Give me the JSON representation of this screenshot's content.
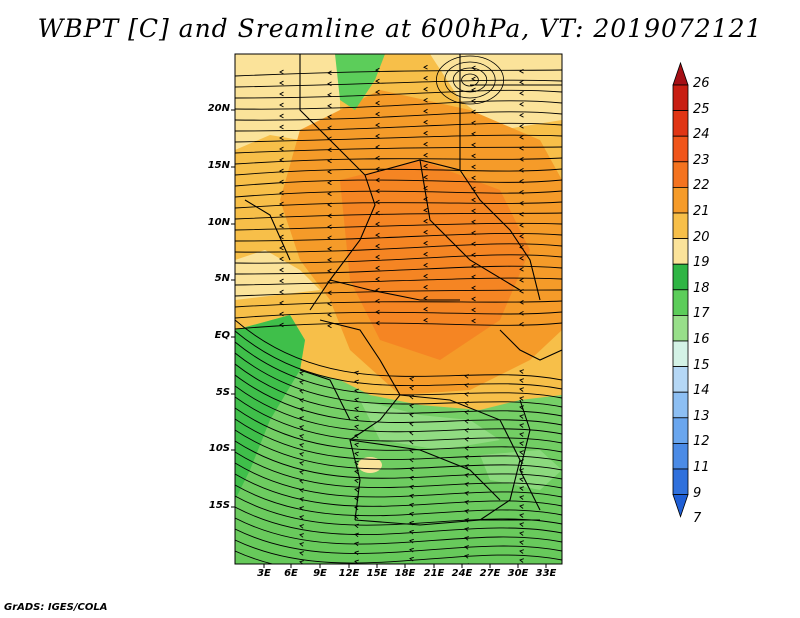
{
  "title": "WBPT [C] and Sreamline at 600hPa, VT: 2019072121",
  "credit": "GrADS: IGES/COLA",
  "map": {
    "lat_labels": [
      "20N",
      "15N",
      "10N",
      "5N",
      "EQ",
      "5S",
      "10S",
      "15S"
    ],
    "lon_labels": [
      "3E",
      "6E",
      "9E",
      "12E",
      "15E",
      "18E",
      "21E",
      "24E",
      "27E",
      "30E",
      "33E"
    ]
  },
  "colorbar": {
    "labels": [
      "26",
      "25",
      "24",
      "23",
      "22",
      "21",
      "20",
      "19",
      "18",
      "17",
      "16",
      "15",
      "14",
      "13",
      "12",
      "11",
      "9",
      "7"
    ],
    "colors": [
      "#a50f15",
      "#c81e12",
      "#e03514",
      "#f0551a",
      "#f4731f",
      "#f59b29",
      "#f7bf49",
      "#fbe39a",
      "#2fb544",
      "#5ccd5a",
      "#98df8a",
      "#d4f2e6",
      "#b5d7f5",
      "#8dbff3",
      "#6aa6ee",
      "#4b8be6",
      "#2f70dc",
      "#1f5fd6"
    ]
  }
}
